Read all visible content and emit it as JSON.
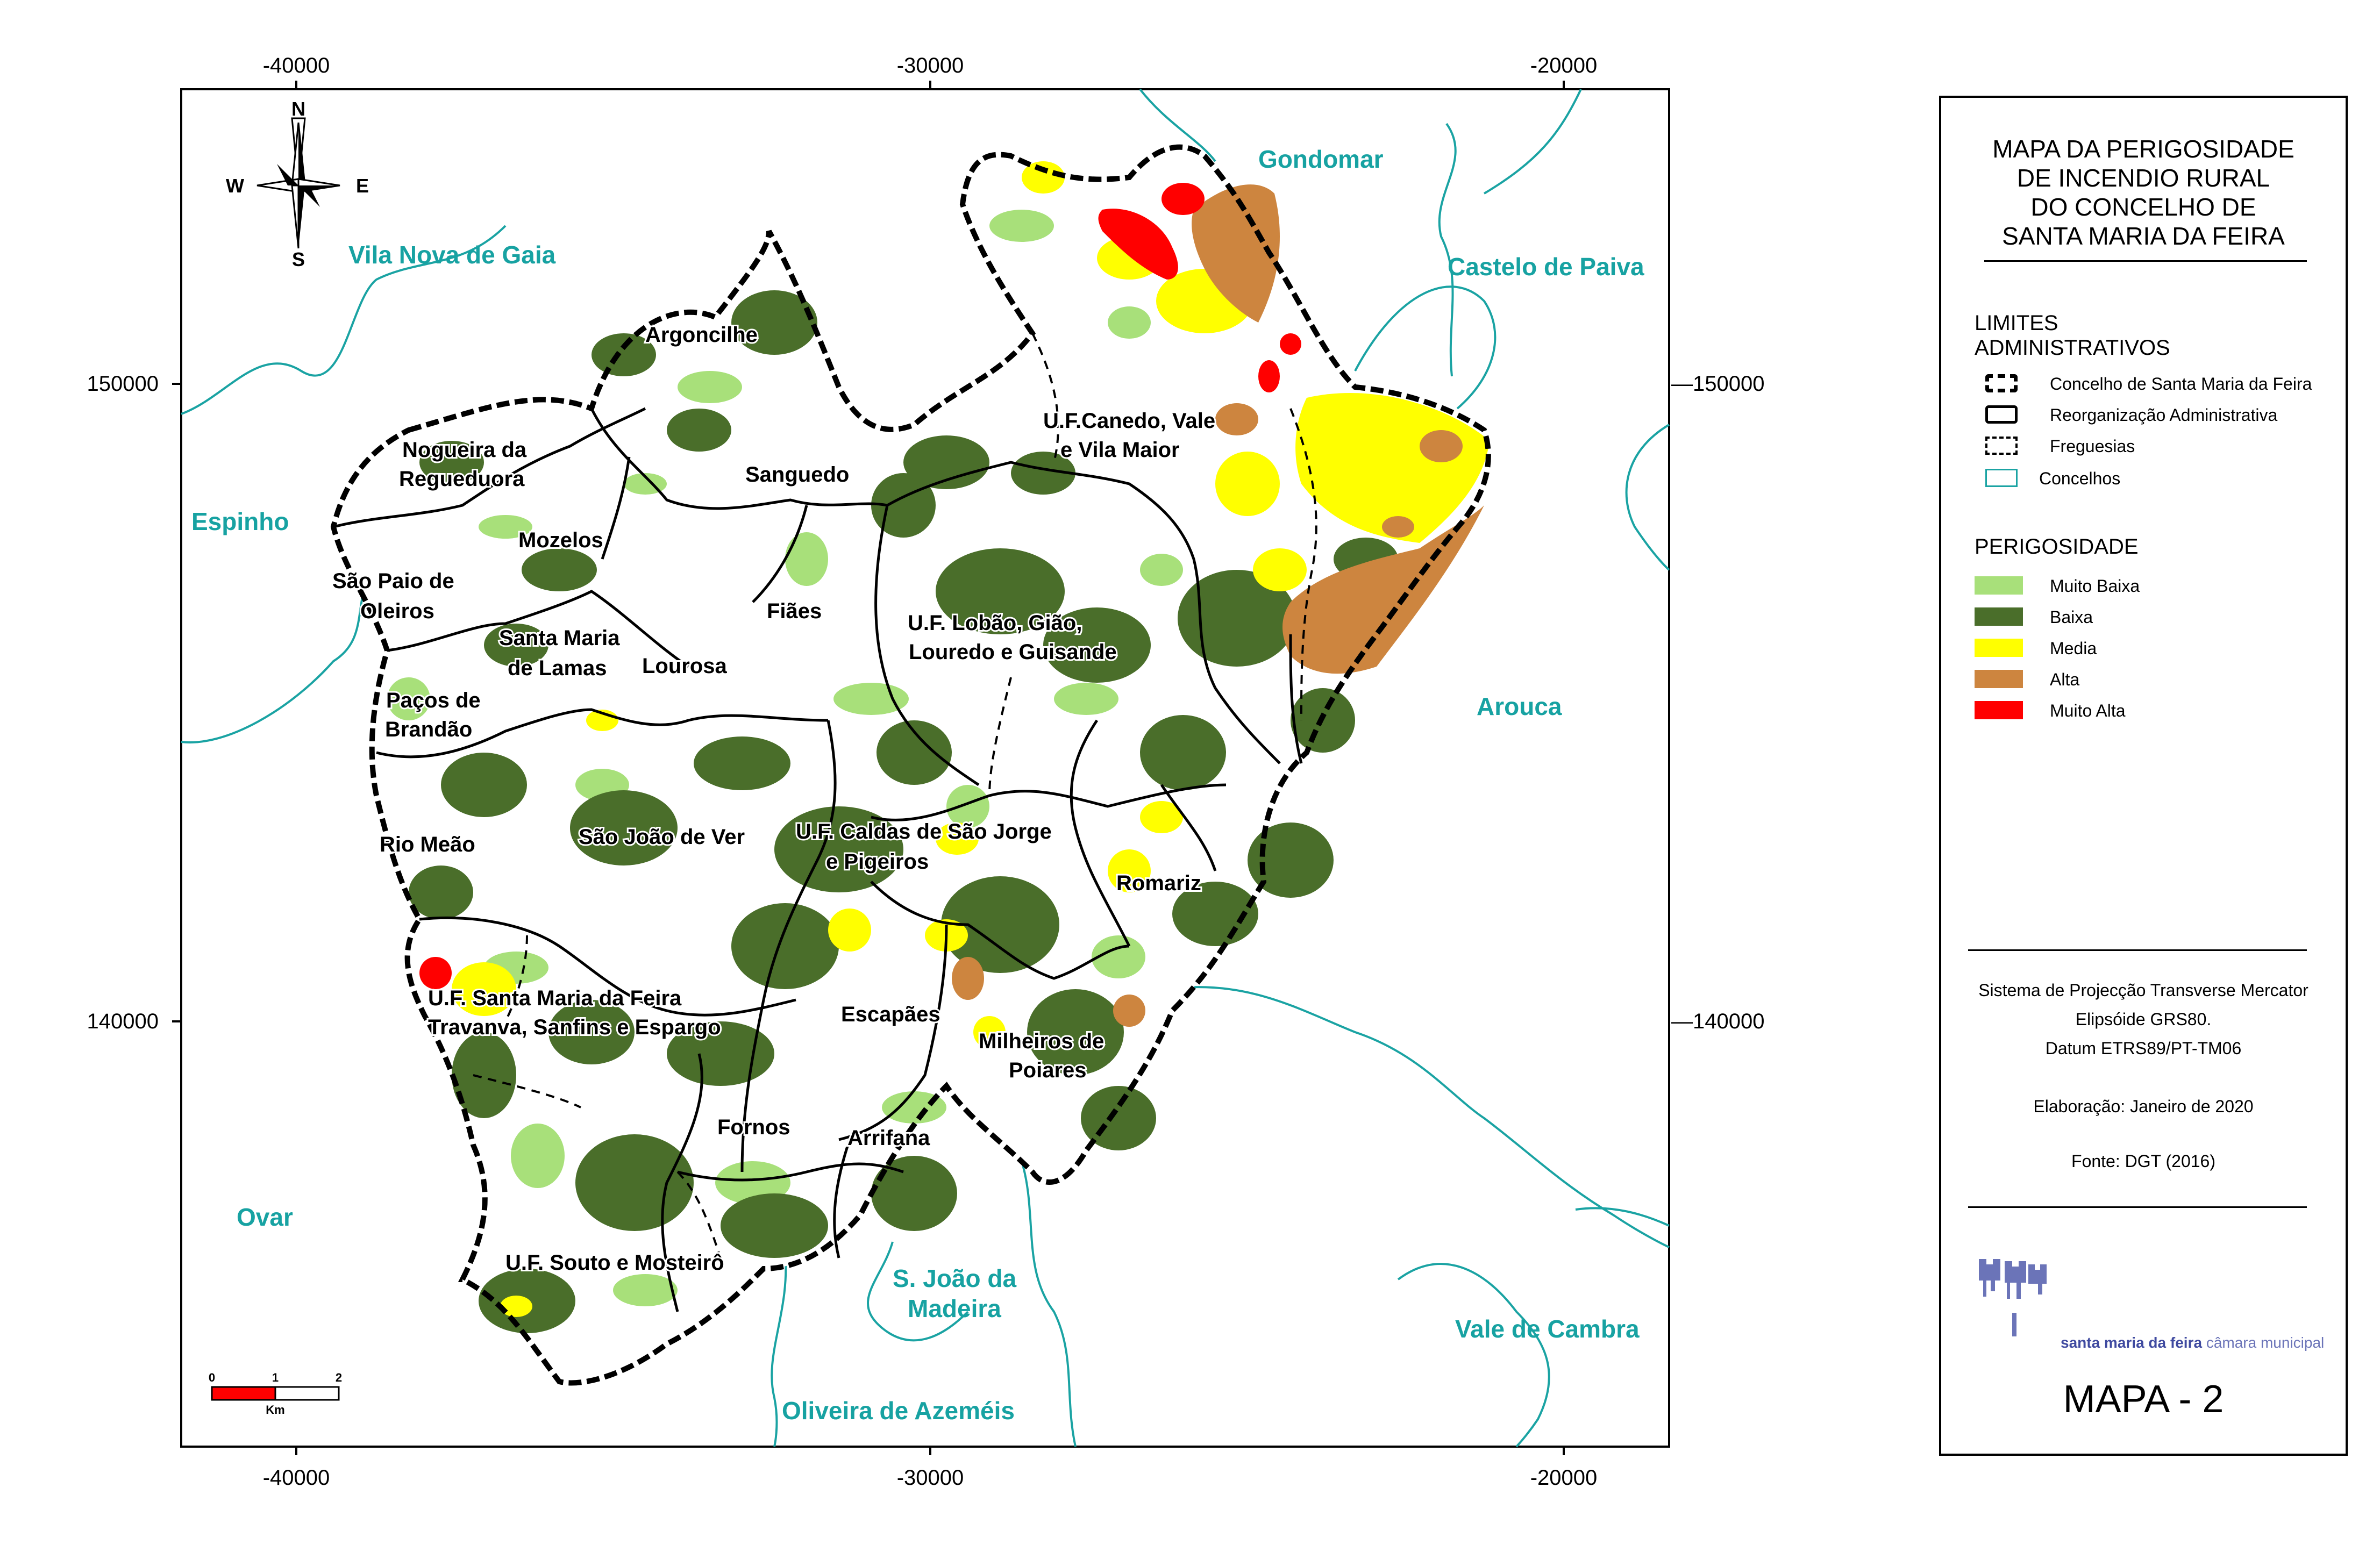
{
  "title": [
    "MAPA DA PERIGOSIDADE",
    "DE INCENDIO RURAL",
    "DO  CONCELHO DE",
    "SANTA MARIA DA FEIRA"
  ],
  "axes": {
    "x_ticks": [
      "-40000",
      "-30000",
      "-20000"
    ],
    "y_ticks": [
      "150000",
      "140000"
    ],
    "y_ticks_right": [
      "—150000",
      "—140000"
    ]
  },
  "compass": {
    "n": "N",
    "s": "S",
    "e": "E",
    "w": "W"
  },
  "scale_bar": {
    "ticks": [
      "0",
      "1",
      "2"
    ],
    "unit": "Km"
  },
  "neighbour_councils": [
    "Gondomar",
    "Castelo de Paiva",
    "Vila Nova de Gaia",
    "Espinho",
    "Arouca",
    "Ovar",
    "S. João da",
    "Madeira",
    "Oliveira de Azeméis",
    "Vale de Cambra"
  ],
  "parishes": [
    "Argoncilhe",
    "Nogueira da",
    "Regueduora",
    "Sanguedo",
    "U.F.Canedo, Vale",
    "e Vila Maior",
    "Mozelos",
    "São Paio de",
    "Oleiros",
    "Santa Maria",
    "de Lamas",
    "Lourosa",
    "Fiães",
    "U.F. Lobão, Gião,",
    "Louredo e Guisande",
    "Paços de",
    "Brandão",
    "Rio Meão",
    "São João de Ver",
    "U.F. Caldas de São Jorge",
    "e Pigeiros",
    "Romariz",
    "U.F. Santa Maria da Feira",
    "Travanva, Sanfins e Espargo",
    "Escapães",
    "Milheiros de",
    "Poiares",
    "Fornos",
    "Arrifana",
    "U.F. Souto e Mosteirô"
  ],
  "legend": {
    "admin_title": [
      "LIMITES",
      "ADMINISTRATIVOS"
    ],
    "admin_items": [
      {
        "label": "Concelho de Santa Maria da Feira",
        "style": "thick-dashed"
      },
      {
        "label": "Reorganização Administrativa",
        "style": "solid"
      },
      {
        "label": "Freguesias",
        "style": "dashed"
      },
      {
        "label": "Concelhos",
        "style": "teal"
      }
    ],
    "hazard_title": "PERIGOSIDADE",
    "hazard_items": [
      {
        "label": "Muito Baixa",
        "color": "#a8e07a"
      },
      {
        "label": "Baixa",
        "color": "#4a6e2a"
      },
      {
        "label": "Media",
        "color": "#ffff00"
      },
      {
        "label": "Alta",
        "color": "#cd853f"
      },
      {
        "label": "Muito Alta",
        "color": "#ff0000"
      }
    ]
  },
  "projection": [
    "Sistema de Projecção Transverse  Mercator",
    "Elipsóide GRS80.",
    "Datum ETRS89/PT-TM06"
  ],
  "elaboration": "Elaboração: Janeiro de 2020",
  "source": "Fonte: DGT (2016)",
  "logo": {
    "name": "santa maria da feira",
    "suffix": "câmara municipal"
  },
  "map_number": "MAPA - 2",
  "colors": {
    "council_line": "#1aa3a3",
    "label_teal": "#17a2a2"
  }
}
